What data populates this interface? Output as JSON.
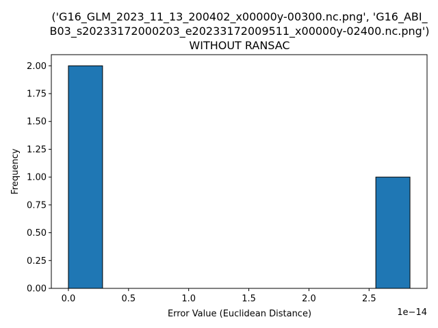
{
  "chart_data": {
    "type": "histogram",
    "title_lines": [
      "('G16_GLM_2023_11_13_200402_x00000y-00300.nc.png', 'G16_ABI_",
      "B03_s20233172000203_e20233172009511_x00000y-02400.nc.png')",
      "WITHOUT RANSAC"
    ],
    "xlabel": "Error Value (Euclidean Distance)",
    "ylabel": "Frequency",
    "x_offset_label": "1e−14",
    "x_scale": 1e-14,
    "xlim": [
      -0.142,
      2.982
    ],
    "ylim": [
      0,
      2.1
    ],
    "xticks": [
      0.0,
      0.5,
      1.0,
      1.5,
      2.0,
      2.5
    ],
    "xtick_labels": [
      "0.0",
      "0.5",
      "1.0",
      "1.5",
      "2.0",
      "2.5"
    ],
    "yticks": [
      0.0,
      0.25,
      0.5,
      0.75,
      1.0,
      1.25,
      1.5,
      1.75,
      2.0
    ],
    "ytick_labels": [
      "0.00",
      "0.25",
      "0.50",
      "0.75",
      "1.00",
      "1.25",
      "1.50",
      "1.75",
      "2.00"
    ],
    "bin_edges": [
      0.0,
      0.284,
      0.568,
      0.852,
      1.136,
      1.42,
      1.704,
      1.988,
      2.272,
      2.556,
      2.84
    ],
    "counts": [
      2,
      0,
      0,
      0,
      0,
      0,
      0,
      0,
      0,
      1
    ],
    "bar_color": "#1f77b4",
    "edge_color": "#000000",
    "grid": false,
    "legend": "none"
  }
}
